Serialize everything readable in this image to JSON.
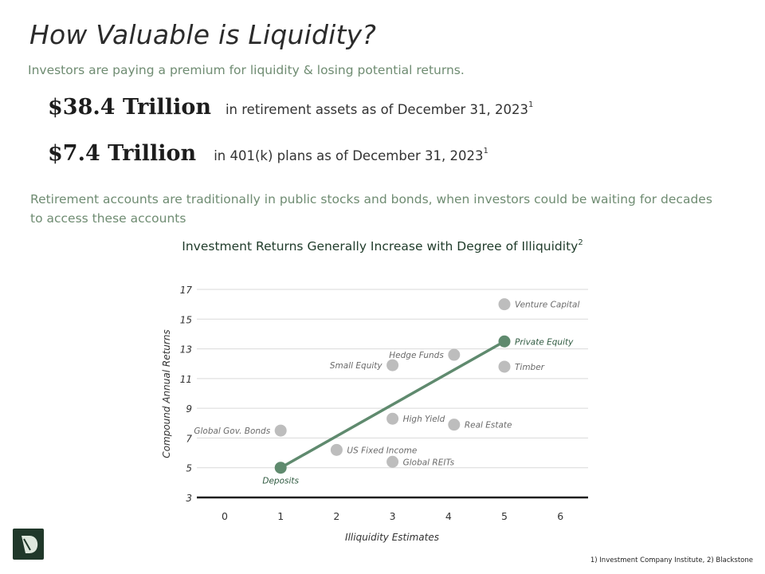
{
  "page": {
    "title": "How Valuable is Liquidity?",
    "subtitle": "Investors are paying a premium for liquidity & losing potential returns.",
    "stats": [
      {
        "value": "$38.4 Trillion",
        "desc": "in retirement assets as of December 31, 2023",
        "note": "1"
      },
      {
        "value": "$7.4 Trillion",
        "desc": "in 401(k) plans as of December 31, 2023",
        "note": "1"
      }
    ],
    "body": "Retirement accounts are traditionally in public stocks and bonds, when investors could be waiting for decades to access these accounts",
    "footnote": "1) Investment Company Institute, 2) Blackstone"
  },
  "colors": {
    "accent": "#5f8a6e",
    "point_gray": "#bdbdbd",
    "text_green": "#6f8c72",
    "logo": "#20382a"
  },
  "chart_data": {
    "type": "scatter",
    "title": "Investment Returns Generally Increase with Degree of Illiquidity",
    "title_note": "2",
    "xlabel": "Illiquidity Estimates",
    "ylabel": "Compound Annual Returns",
    "xlim": [
      -0.5,
      6.5
    ],
    "ylim": [
      3,
      17
    ],
    "xticks": [
      "0",
      "1",
      "2",
      "3",
      "4",
      "5",
      "6"
    ],
    "yticks": [
      "3",
      "5",
      "7",
      "9",
      "11",
      "13",
      "15",
      "17"
    ],
    "grid": "horizontal",
    "points": [
      {
        "label": "Deposits",
        "x": 1,
        "y": 5.0,
        "highlight": true,
        "label_pos": "below"
      },
      {
        "label": "Global Gov. Bonds",
        "x": 1,
        "y": 7.5,
        "highlight": false,
        "label_pos": "left"
      },
      {
        "label": "US Fixed Income",
        "x": 2,
        "y": 6.2,
        "highlight": false,
        "label_pos": "right"
      },
      {
        "label": "Global REITs",
        "x": 3,
        "y": 5.4,
        "highlight": false,
        "label_pos": "right"
      },
      {
        "label": "High Yield",
        "x": 3,
        "y": 8.3,
        "highlight": false,
        "label_pos": "right"
      },
      {
        "label": "Small Equity",
        "x": 3,
        "y": 11.9,
        "highlight": false,
        "label_pos": "left"
      },
      {
        "label": "Hedge Funds",
        "x": 4.1,
        "y": 12.6,
        "highlight": false,
        "label_pos": "left"
      },
      {
        "label": "Real Estate",
        "x": 4.1,
        "y": 7.9,
        "highlight": false,
        "label_pos": "right"
      },
      {
        "label": "Private Equity",
        "x": 5,
        "y": 13.5,
        "highlight": true,
        "label_pos": "right"
      },
      {
        "label": "Timber",
        "x": 5,
        "y": 11.8,
        "highlight": false,
        "label_pos": "right"
      },
      {
        "label": "Venture Capital",
        "x": 5,
        "y": 16.0,
        "highlight": false,
        "label_pos": "right"
      }
    ],
    "trend_line": {
      "from": [
        1,
        5.0
      ],
      "to": [
        5,
        13.5
      ]
    }
  }
}
